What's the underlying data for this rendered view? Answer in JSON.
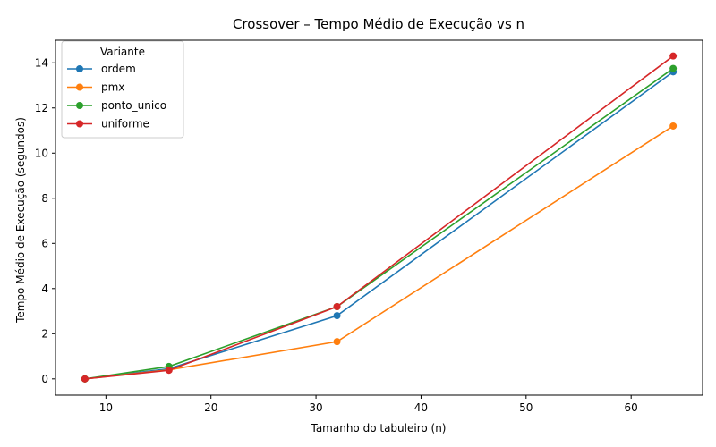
{
  "chart_data": {
    "type": "line",
    "title": "Crossover – Tempo Médio de Execução vs n",
    "xlabel": "Tamanho do tabuleiro (n)",
    "ylabel": "Tempo Médio de Execução (segundos)",
    "xlim": [
      5.2,
      66.8
    ],
    "ylim": [
      -0.72,
      15.0
    ],
    "xticks": [
      10,
      20,
      30,
      40,
      50,
      60
    ],
    "yticks": [
      0,
      2,
      4,
      6,
      8,
      10,
      12,
      14
    ],
    "grid": false,
    "legend": {
      "title": "Variante",
      "position": "top-left"
    },
    "x": [
      8,
      16,
      32,
      64
    ],
    "series": [
      {
        "name": "ordem",
        "color": "#1f77b4",
        "values": [
          0.0,
          0.45,
          2.8,
          13.6
        ]
      },
      {
        "name": "pmx",
        "color": "#ff7f0e",
        "values": [
          0.0,
          0.4,
          1.65,
          11.2
        ]
      },
      {
        "name": "ponto_unico",
        "color": "#2ca02c",
        "values": [
          0.0,
          0.55,
          3.2,
          13.75
        ]
      },
      {
        "name": "uniforme",
        "color": "#d62728",
        "values": [
          0.0,
          0.38,
          3.2,
          14.3
        ]
      }
    ]
  }
}
